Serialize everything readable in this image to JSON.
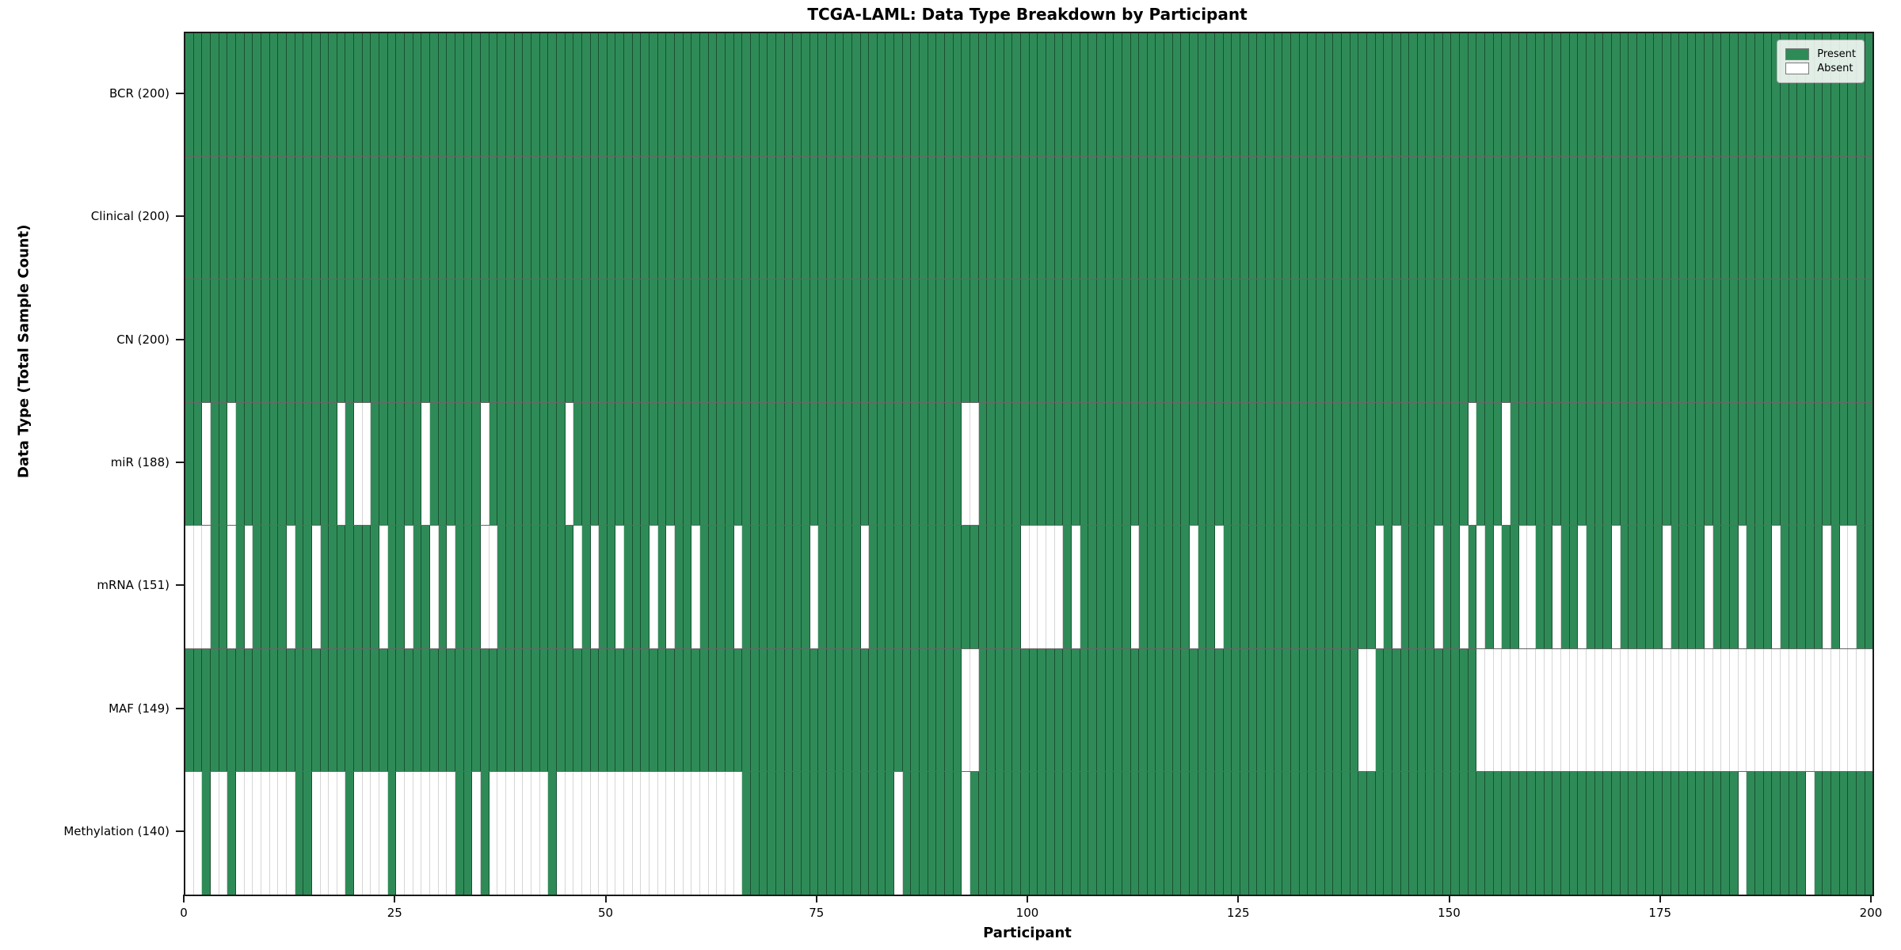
{
  "figure": {
    "title": "TCGA-LAML: Data Type Breakdown by Participant"
  },
  "chart_data": {
    "type": "heatmap",
    "title": "TCGA-LAML: Data Type Breakdown by Participant",
    "xlabel": "Participant",
    "ylabel": "Data Type (Total Sample Count)",
    "x_range": [
      0,
      200
    ],
    "x_ticks": [
      0,
      25,
      50,
      75,
      100,
      125,
      150,
      175,
      200
    ],
    "n_participants": 200,
    "legend_position": "upper-right",
    "colors": {
      "present": "#2e8b57",
      "absent": "#ffffff",
      "grid_on_green": "rgba(0,0,0,0.42)",
      "grid_on_white": "rgba(0,0,0,0.16)"
    },
    "legend": [
      {
        "label": "Present",
        "key": "present"
      },
      {
        "label": "Absent",
        "key": "absent"
      }
    ],
    "rows": [
      {
        "label": "BCR (200)",
        "data_type": "BCR",
        "present_count": 200,
        "absent_participants": []
      },
      {
        "label": "Clinical (200)",
        "data_type": "Clinical",
        "present_count": 200,
        "absent_participants": []
      },
      {
        "label": "CN (200)",
        "data_type": "CN",
        "present_count": 200,
        "absent_participants": []
      },
      {
        "label": "miR (188)",
        "data_type": "miR",
        "present_count": 188,
        "absent_participants": [
          2,
          5,
          18,
          20,
          21,
          28,
          35,
          45,
          92,
          93,
          152,
          156
        ]
      },
      {
        "label": "mRNA (151)",
        "data_type": "mRNA",
        "present_count": 151,
        "absent_participants": [
          0,
          1,
          2,
          5,
          7,
          12,
          15,
          23,
          26,
          29,
          31,
          35,
          36,
          46,
          48,
          51,
          55,
          57,
          60,
          65,
          74,
          80,
          99,
          100,
          101,
          102,
          103,
          105,
          112,
          119,
          122,
          141,
          143,
          148,
          151,
          153,
          155,
          158,
          159,
          162,
          165,
          169,
          175,
          180,
          184,
          188,
          194,
          196,
          197
        ]
      },
      {
        "label": "MAF (149)",
        "data_type": "MAF",
        "present_count": 149,
        "absent_participants": [
          92,
          93,
          139,
          140,
          153,
          154,
          155,
          156,
          157,
          158,
          159,
          160,
          161,
          162,
          163,
          164,
          165,
          166,
          167,
          168,
          169,
          170,
          171,
          172,
          173,
          174,
          175,
          176,
          177,
          178,
          179,
          180,
          181,
          182,
          183,
          184,
          185,
          186,
          187,
          188,
          189,
          190,
          191,
          192,
          193,
          194,
          195,
          196,
          197,
          198,
          199
        ]
      },
      {
        "label": "Methylation (140)",
        "data_type": "Methylation",
        "present_count": 140,
        "absent_participants": [
          0,
          1,
          3,
          4,
          6,
          7,
          8,
          9,
          10,
          11,
          12,
          15,
          16,
          17,
          18,
          20,
          21,
          22,
          23,
          25,
          26,
          27,
          28,
          29,
          30,
          31,
          34,
          36,
          37,
          38,
          39,
          40,
          41,
          42,
          44,
          45,
          46,
          47,
          48,
          49,
          50,
          51,
          52,
          53,
          54,
          55,
          56,
          57,
          58,
          59,
          60,
          61,
          62,
          63,
          64,
          65,
          84,
          92,
          184,
          192
        ]
      }
    ]
  }
}
